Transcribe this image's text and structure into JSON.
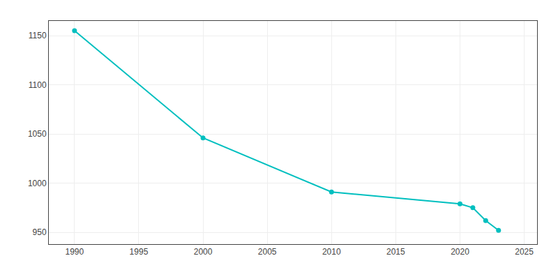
{
  "chart_data": {
    "type": "line",
    "x": [
      1990,
      2000,
      2010,
      2020,
      2021,
      2022,
      2023
    ],
    "values": [
      1155,
      1046,
      991,
      979,
      975,
      962,
      952
    ],
    "color": "#00BFBF",
    "marker": "circle",
    "xlim": [
      1988,
      2026
    ],
    "ylim": [
      938,
      1165
    ],
    "xticks": [
      1990,
      1995,
      2000,
      2005,
      2010,
      2015,
      2020,
      2025
    ],
    "yticks": [
      950,
      1000,
      1050,
      1100,
      1150
    ],
    "grid": true
  }
}
